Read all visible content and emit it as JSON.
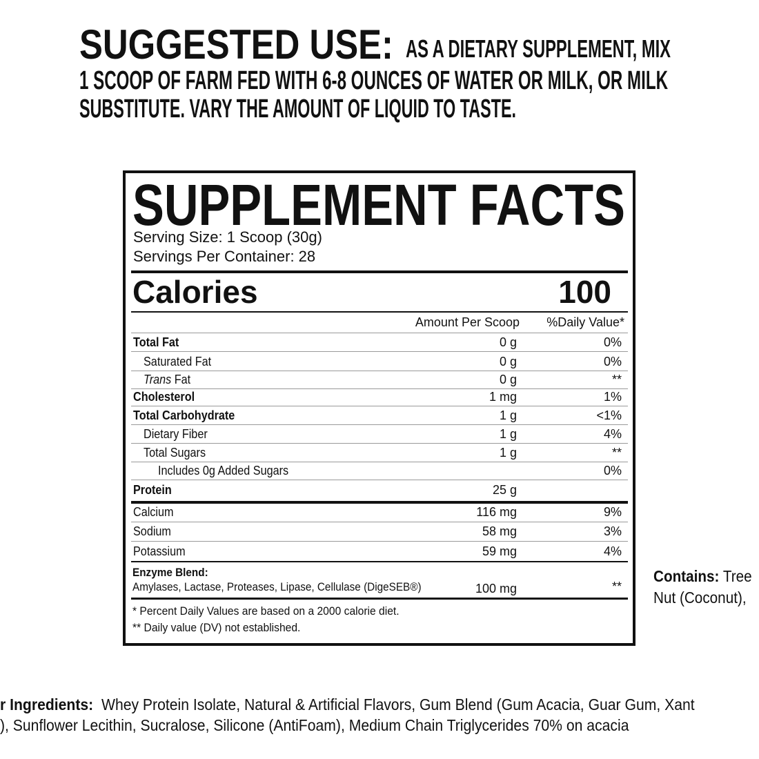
{
  "suggested_use": {
    "label": "SUGGESTED USE:",
    "lines": [
      "AS A DIETARY SUPPLEMENT, MIX",
      "1 SCOOP OF FARM FED WITH 6-8 OUNCES OF WATER OR MILK, OR MILK",
      "SUBSTITUTE. VARY THE AMOUNT OF LIQUID TO TASTE."
    ]
  },
  "facts": {
    "title": "SUPPLEMENT FACTS",
    "serving_size": "Serving Size: 1 Scoop (30g)",
    "servings_per_container": "Servings Per Container: 28",
    "calories_label": "Calories",
    "calories_value": "100",
    "header_amount": "Amount Per Scoop",
    "header_dv": "%Daily Value*",
    "rows": [
      {
        "name": "Total Fat",
        "amount": "0 g",
        "dv": "0%",
        "level": 0,
        "bold": true
      },
      {
        "name": "Saturated Fat",
        "amount": "0 g",
        "dv": "0%",
        "level": 1,
        "bold": false
      },
      {
        "name_italic": "Trans",
        "name": "Fat",
        "amount": "0 g",
        "dv": "**",
        "level": 1,
        "bold": false
      },
      {
        "name": "Cholesterol",
        "amount": "1 mg",
        "dv": "1%",
        "level": 0,
        "bold": true
      },
      {
        "name": "Total Carbohydrate",
        "amount": "1 g",
        "dv": "<1%",
        "level": 0,
        "bold": true
      },
      {
        "name": "Dietary Fiber",
        "amount": "1 g",
        "dv": "4%",
        "level": 1,
        "bold": false
      },
      {
        "name": "Total Sugars",
        "amount": "1 g",
        "dv": "**",
        "level": 1,
        "bold": false
      },
      {
        "name": "Includes 0g Added Sugars",
        "amount": "",
        "dv": "0%",
        "level": 2,
        "bold": false
      },
      {
        "name": "Protein",
        "amount": "25 g",
        "dv": "",
        "level": 0,
        "bold": true
      }
    ],
    "minerals": [
      {
        "name": "Calcium",
        "amount": "116 mg",
        "dv": "9%"
      },
      {
        "name": "Sodium",
        "amount": "58 mg",
        "dv": "3%"
      },
      {
        "name": "Potassium",
        "amount": "59 mg",
        "dv": "4%"
      }
    ],
    "enzyme": {
      "label": "Enzyme Blend:",
      "ingredients": "Amylases, Lactase, Proteases, Lipase, Cellulase (DigeSEB®)",
      "amount": "100 mg",
      "dv": "**"
    },
    "footnotes": [
      "* Percent Daily Values are based on a 2000 calorie diet.",
      "** Daily value (DV) not established."
    ]
  },
  "contains": {
    "label": "Contains:",
    "text": "Tree Nut (Coconut),"
  },
  "ingredients": {
    "label": "r Ingredients:",
    "line1": "Whey Protein Isolate, Natural & Artificial Flavors, Gum Blend (Gum Acacia, Guar Gum, Xant",
    "line2": "), Sunflower Lecithin, Sucralose, Silicone (AntiFoam),  Medium Chain Triglycerides 70% on acacia"
  }
}
